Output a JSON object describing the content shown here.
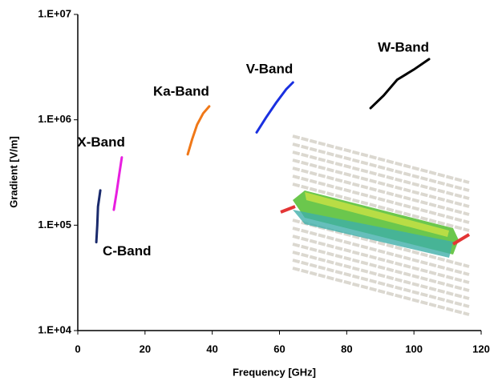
{
  "chart_data": {
    "type": "line",
    "x_label": "Frequency [GHz]",
    "y_label": "Gradient [V/m]",
    "xlim": [
      0,
      120
    ],
    "xticks": [
      0,
      20,
      40,
      60,
      80,
      100,
      120
    ],
    "ylim": [
      10000,
      10000000
    ],
    "yscale": "log",
    "yticks": [
      {
        "value": 10000,
        "label": "1.E+04"
      },
      {
        "value": 100000,
        "label": "1.E+05"
      },
      {
        "value": 1000000,
        "label": "1.E+06"
      },
      {
        "value": 10000000,
        "label": "1.E+07"
      }
    ],
    "grid": false,
    "series": [
      {
        "name": "C-Band",
        "color": "#1a2a6c",
        "x": [
          5.5,
          5.8,
          6.0,
          6.7
        ],
        "values": [
          69000,
          100000,
          150000,
          214000
        ]
      },
      {
        "name": "X-Band",
        "color": "#e81ee0",
        "x": [
          10.7,
          11.5,
          12.3,
          13.1
        ],
        "values": [
          140000,
          200000,
          300000,
          440000
        ]
      },
      {
        "name": "Ka-Band",
        "color": "#f07818",
        "x": [
          32.7,
          34,
          35.5,
          37.3,
          39.1
        ],
        "values": [
          470000,
          650000,
          900000,
          1150000,
          1340000
        ]
      },
      {
        "name": "V-Band",
        "color": "#1a30e0",
        "x": [
          53.2,
          56,
          59,
          62,
          64
        ],
        "values": [
          760000,
          1050000,
          1450000,
          1950000,
          2260000
        ]
      },
      {
        "name": "W-Band",
        "color": "#000000",
        "x": [
          87.1,
          91,
          95,
          100,
          104.5
        ],
        "values": [
          1290000,
          1700000,
          2400000,
          3000000,
          3760000
        ]
      }
    ]
  }
}
